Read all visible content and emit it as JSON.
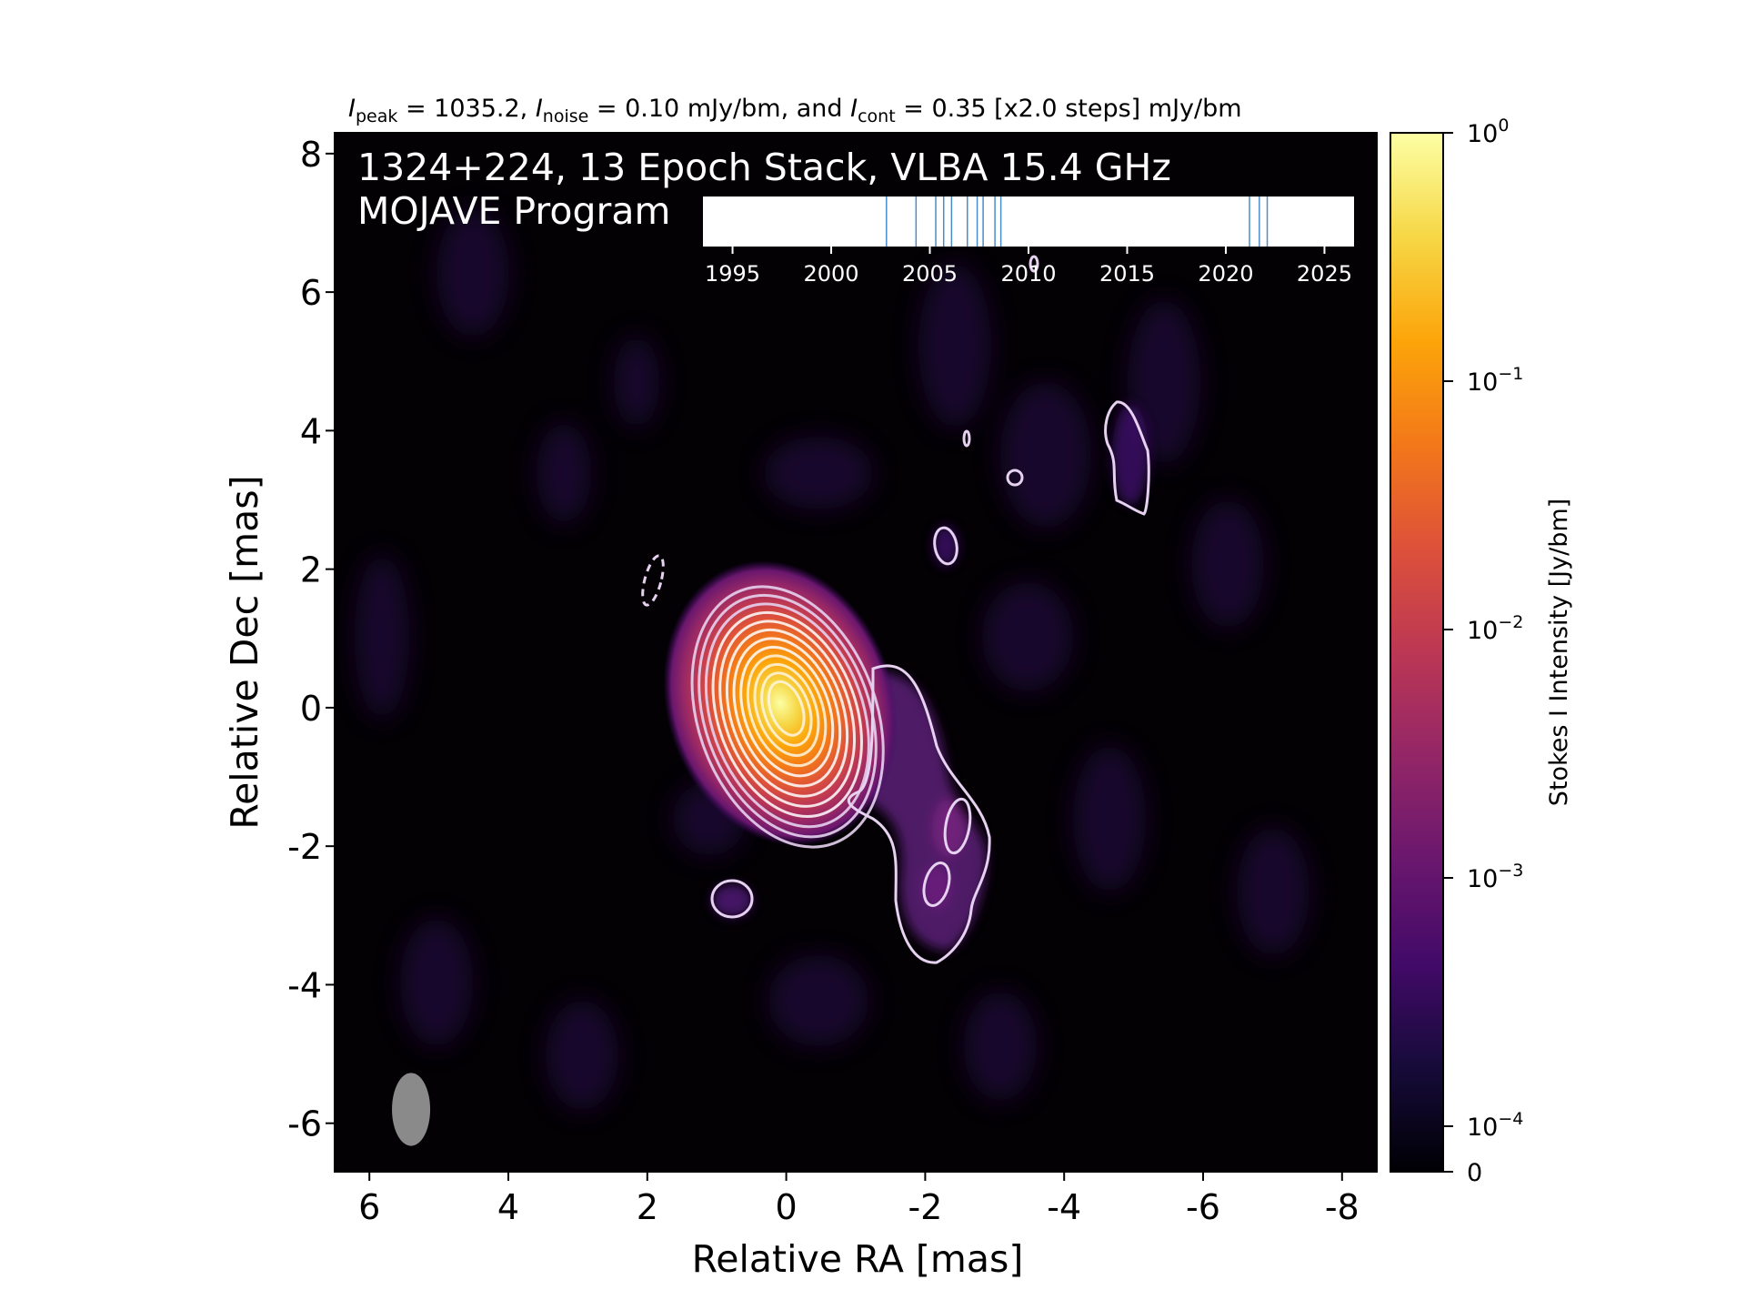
{
  "chart_data": {
    "type": "heatmap",
    "image_kind": "VLBA Stokes I intensity map with contours",
    "title_parts": [
      {
        "text": "I",
        "italic": true
      },
      {
        "text": "peak",
        "sub": true
      },
      {
        "text": " = 1035.2, "
      },
      {
        "text": "I",
        "italic": true
      },
      {
        "text": "noise",
        "sub": true
      },
      {
        "text": " = 0.10 mJy/bm, and "
      },
      {
        "text": "I",
        "italic": true
      },
      {
        "text": "cont",
        "sub": true
      },
      {
        "text": " = 0.35 [x2.0 steps] mJy/bm"
      }
    ],
    "annotation_line1": "1324+224, 13 Epoch Stack, VLBA 15.4 GHz",
    "annotation_line2": "MOJAVE Program",
    "xlabel": "Relative RA [mas]",
    "ylabel": "Relative Dec [mas]",
    "xlim": [
      6.5,
      -8.5
    ],
    "ylim": [
      -6.7,
      8.3
    ],
    "x_ticks": [
      6,
      4,
      2,
      0,
      -2,
      -4,
      -6,
      -8
    ],
    "y_ticks": [
      8,
      6,
      4,
      2,
      0,
      -2,
      -4,
      -6
    ],
    "colorbar": {
      "label": "Stokes I Intensity [Jy/bm]",
      "scale": "log",
      "colormap": "inferno",
      "ticks": [
        {
          "value": 1,
          "base": "10",
          "exp": "0"
        },
        {
          "value": 0.1,
          "base": "10",
          "exp": "−1"
        },
        {
          "value": 0.01,
          "base": "10",
          "exp": "−2"
        },
        {
          "value": 0.001,
          "base": "10",
          "exp": "−3"
        },
        {
          "value": 0.0001,
          "base": "10",
          "exp": "−4"
        },
        {
          "value": 0,
          "base": "0",
          "exp": ""
        }
      ]
    },
    "core": {
      "ra": 0.0,
      "dec": 0.0
    },
    "contour_color": "#e6d2f0",
    "epoch_inset": {
      "xlim": [
        1993.5,
        2026.5
      ],
      "ticks": [
        1995,
        2000,
        2005,
        2010,
        2015,
        2020,
        2025
      ],
      "epochs": [
        2002.8,
        2004.3,
        2005.3,
        2005.7,
        2006.1,
        2006.9,
        2007.4,
        2007.7,
        2008.3,
        2008.6,
        2021.2,
        2021.7,
        2022.1
      ],
      "line_color": "#4a8cc8"
    },
    "beam": {
      "ra": 5.4,
      "dec": -5.8,
      "major_mas": 1.05,
      "minor_mas": 0.55,
      "color": "#8a8a8a"
    }
  }
}
